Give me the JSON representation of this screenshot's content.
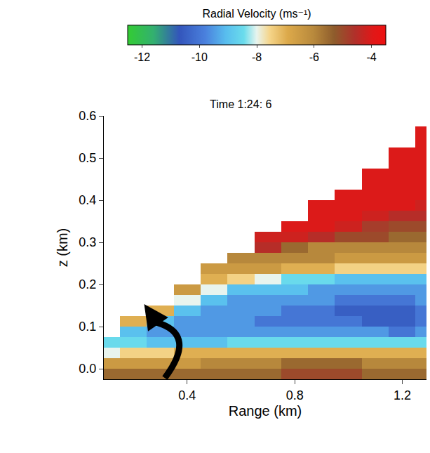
{
  "chart_data": {
    "type": "heatmap",
    "title": "Time 1:24: 6",
    "x_label": "Range (km)",
    "y_label": "z (km)",
    "colorbar_title": "Radial Velocity (ms⁻¹)",
    "colorbar_range": [
      -12.5,
      -3.5
    ],
    "colorbar_ticks": [
      -12,
      -10,
      -8,
      -6,
      -4
    ],
    "xlim": [
      0.09,
      1.29
    ],
    "xticks": [
      0.4,
      0.8,
      1.2
    ],
    "ylim": [
      -0.025,
      0.6
    ],
    "yticks": [
      {
        "value": 0,
        "label": "0.0"
      },
      0.1,
      0.2,
      0.3,
      0.4,
      0.5,
      0.6
    ],
    "grid": false,
    "x": [
      0.1,
      0.2,
      0.3,
      0.4,
      0.5,
      0.6,
      0.7,
      0.8,
      0.9,
      1.0,
      1.1,
      1.2,
      1.3
    ],
    "y": [
      -0.0125,
      0.0125,
      0.0375,
      0.0625,
      0.0875,
      0.1125,
      0.1375,
      0.1625,
      0.1875,
      0.2125,
      0.2375,
      0.2625,
      0.2875,
      0.3125,
      0.3375,
      0.3625,
      0.3875,
      0.4125,
      0.4375,
      0.4625,
      0.4875,
      0.5125,
      0.5375,
      0.5625,
      0.5875
    ],
    "z_by_column": [
      [
        -5.5,
        -6.5,
        -8,
        -8.5,
        null,
        null,
        null,
        null,
        null,
        null,
        null,
        null,
        null,
        null,
        null,
        null,
        null,
        null,
        null,
        null,
        null,
        null,
        null,
        null,
        null
      ],
      [
        -5.5,
        -6.5,
        -7.5,
        -8.5,
        -9,
        -7,
        null,
        null,
        null,
        null,
        null,
        null,
        null,
        null,
        null,
        null,
        null,
        null,
        null,
        null,
        null,
        null,
        null,
        null,
        null
      ],
      [
        -5.5,
        -6.5,
        -7.5,
        -9,
        -9.5,
        -9,
        -7,
        null,
        null,
        null,
        null,
        null,
        null,
        null,
        null,
        null,
        null,
        null,
        null,
        null,
        null,
        null,
        null,
        null,
        null
      ],
      [
        -5.5,
        -6.5,
        -7,
        -9,
        -9.5,
        -9.5,
        -9,
        -8,
        -6.5,
        null,
        null,
        null,
        null,
        null,
        null,
        null,
        null,
        null,
        null,
        null,
        null,
        null,
        null,
        null,
        null
      ],
      [
        -5.5,
        -6,
        -7,
        -9,
        -9.5,
        -9.5,
        -9.5,
        -9,
        -8,
        -7,
        -6.5,
        null,
        null,
        null,
        null,
        null,
        null,
        null,
        null,
        null,
        null,
        null,
        null,
        null,
        null
      ],
      [
        -5.5,
        -6,
        -7,
        -8.5,
        -9.5,
        -9.5,
        -9.5,
        -9.5,
        -9,
        -7.5,
        -6.5,
        -6,
        null,
        null,
        null,
        null,
        null,
        null,
        null,
        null,
        null,
        null,
        null,
        null,
        null
      ],
      [
        -5.5,
        -6,
        -7,
        -8.5,
        -9.5,
        -10,
        -9.5,
        -9.5,
        -9,
        -8,
        -6.5,
        -6,
        -4.5,
        -4.2,
        null,
        null,
        null,
        null,
        null,
        null,
        null,
        null,
        null,
        null,
        null
      ],
      [
        -5,
        -5.5,
        -7,
        -8.5,
        -9.5,
        -10,
        -10,
        -9.5,
        -9,
        -8.5,
        -7,
        -6,
        -5.5,
        -4.2,
        -4,
        null,
        null,
        null,
        null,
        null,
        null,
        null,
        null,
        null,
        null
      ],
      [
        -5,
        -5.5,
        -7,
        -8.5,
        -9.5,
        -10,
        -10,
        -9.5,
        -9.5,
        -8.5,
        -7,
        -6,
        -6,
        -4.5,
        -4,
        -4,
        -4,
        null,
        null,
        null,
        null,
        null,
        null,
        null,
        null
      ],
      [
        -5,
        -5.5,
        -7,
        -8.5,
        -9.5,
        -10,
        -10.5,
        -10,
        -9.5,
        -9,
        -7.5,
        -6.5,
        -6,
        -5,
        -4.2,
        -4,
        -4,
        -4,
        null,
        null,
        null,
        null,
        null,
        null,
        null
      ],
      [
        -5.5,
        -6,
        -7,
        -8.5,
        -9.5,
        -10.5,
        -10.5,
        -10,
        -9.5,
        -9,
        -7.5,
        -6.5,
        -6,
        -5,
        -4.8,
        -4.2,
        -4,
        -4,
        -4,
        -4,
        null,
        null,
        null,
        null,
        null
      ],
      [
        -5.5,
        -6,
        -7,
        -8.5,
        -10,
        -10.5,
        -10.5,
        -10,
        -9.5,
        -9,
        -7.5,
        -6.5,
        -6,
        -5.5,
        -5,
        -4.5,
        -4,
        -4,
        -4,
        -4,
        -4,
        -4,
        null,
        null,
        null
      ],
      [
        -5.5,
        -6,
        -7,
        -8.5,
        -9.5,
        -10,
        -10,
        -9.5,
        -9.5,
        -9,
        -7.5,
        -6.5,
        -6,
        -5.5,
        -5,
        -4.5,
        -4.2,
        -4,
        -4,
        -4,
        -4,
        -4,
        -4,
        -4,
        null
      ]
    ]
  }
}
